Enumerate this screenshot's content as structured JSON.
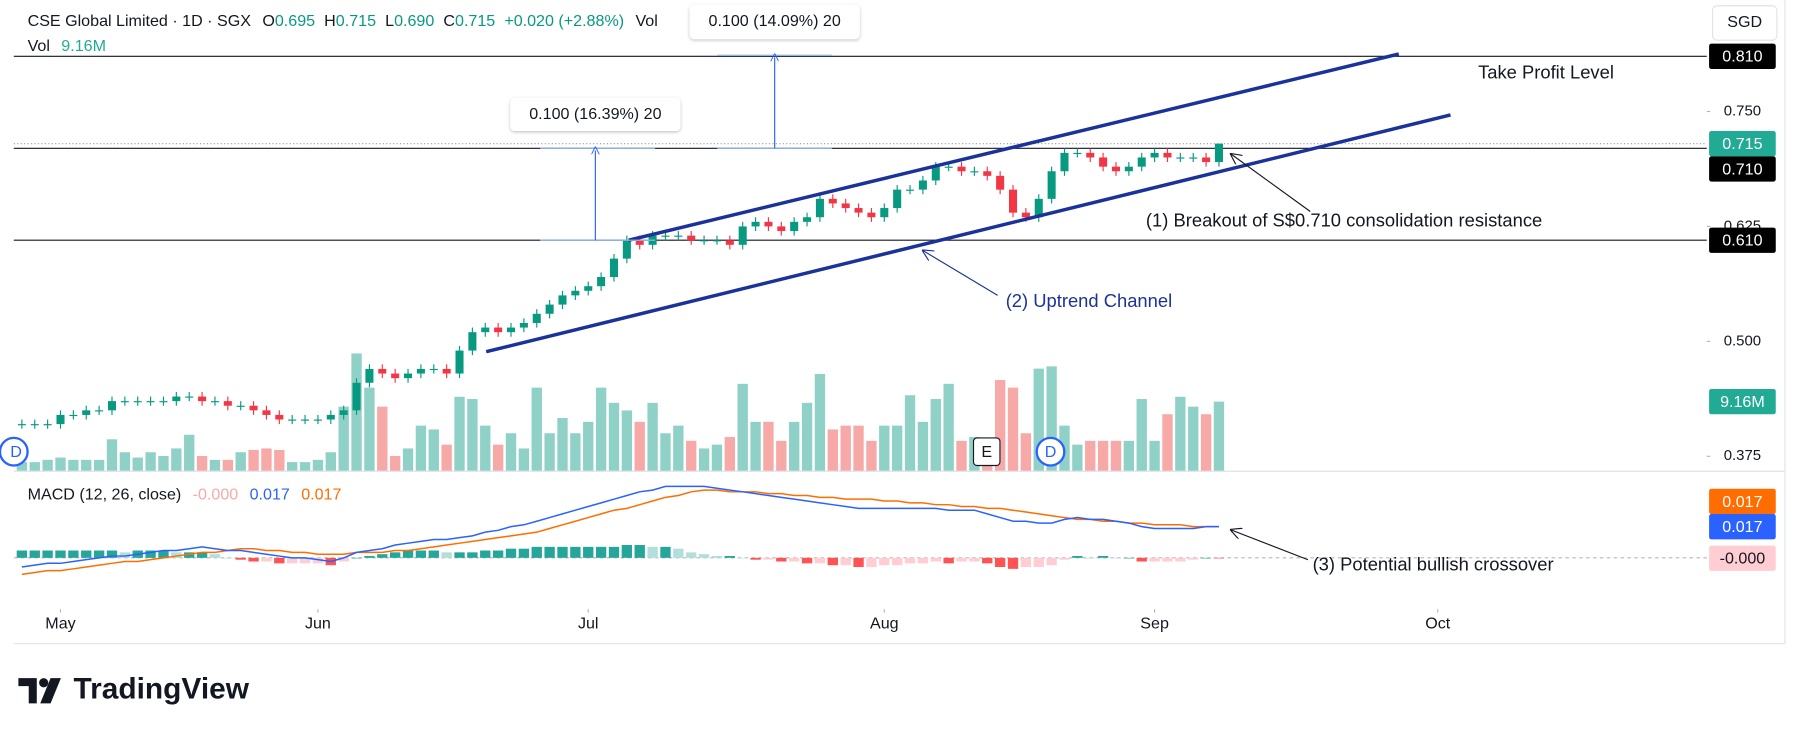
{
  "chart_data": {
    "type": "candlestick",
    "header": {
      "symbol": "CSE Global Limited · 1D · SGX",
      "ohlc": [
        {
          "key": "O",
          "value": "0.695"
        },
        {
          "key": "H",
          "value": "0.715"
        },
        {
          "key": "L",
          "value": "0.690"
        },
        {
          "key": "C",
          "value": "0.715"
        }
      ],
      "change": "+0.020 (+2.88%)"
    },
    "currency": "SGD",
    "colors": {
      "up": "#089981",
      "down": "#f23645",
      "volume_up": "#8fd1c7",
      "volume_down": "#f7a9a7"
    },
    "xlim": [
      -1.7,
      130.9
    ],
    "xticks": [
      {
        "value": 3,
        "label": "May"
      },
      {
        "value": 23,
        "label": "Jun"
      },
      {
        "value": 44,
        "label": "Jul"
      },
      {
        "value": 67,
        "label": "Aug"
      },
      {
        "value": 88,
        "label": "Sep"
      },
      {
        "value": 110,
        "label": "Oct"
      }
    ],
    "ylim": [
      0.35875,
      0.87125
    ],
    "yticks": [
      {
        "value": 0.375,
        "label": "0.375"
      },
      {
        "value": 0.5,
        "label": "0.500"
      },
      {
        "value": 0.625,
        "label": "0.625"
      },
      {
        "value": 0.75,
        "label": "0.750"
      }
    ],
    "candles": {
      "open": [
        0.41,
        0.41,
        0.41,
        0.41,
        0.42,
        0.42,
        0.425,
        0.425,
        0.435,
        0.435,
        0.435,
        0.435,
        0.435,
        0.44,
        0.44,
        0.435,
        0.435,
        0.43,
        0.43,
        0.425,
        0.42,
        0.415,
        0.415,
        0.415,
        0.415,
        0.42,
        0.425,
        0.455,
        0.47,
        0.465,
        0.46,
        0.465,
        0.47,
        0.47,
        0.465,
        0.49,
        0.51,
        0.515,
        0.51,
        0.515,
        0.52,
        0.53,
        0.54,
        0.55,
        0.555,
        0.56,
        0.57,
        0.59,
        0.61,
        0.605,
        0.615,
        0.615,
        0.615,
        0.61,
        0.61,
        0.61,
        0.605,
        0.625,
        0.63,
        0.625,
        0.62,
        0.63,
        0.635,
        0.655,
        0.65,
        0.645,
        0.64,
        0.635,
        0.645,
        0.665,
        0.665,
        0.675,
        0.69,
        0.69,
        0.685,
        0.685,
        0.68,
        0.665,
        0.64,
        0.635,
        0.655,
        0.685,
        0.705,
        0.705,
        0.7,
        0.69,
        0.685,
        0.69,
        0.7,
        0.705,
        0.7,
        0.7,
        0.7,
        0.695
      ],
      "high": [
        0.415,
        0.415,
        0.415,
        0.425,
        0.425,
        0.43,
        0.43,
        0.44,
        0.44,
        0.44,
        0.44,
        0.44,
        0.445,
        0.445,
        0.445,
        0.44,
        0.44,
        0.435,
        0.435,
        0.43,
        0.425,
        0.42,
        0.42,
        0.42,
        0.425,
        0.43,
        0.46,
        0.475,
        0.475,
        0.47,
        0.47,
        0.475,
        0.475,
        0.475,
        0.495,
        0.515,
        0.52,
        0.52,
        0.52,
        0.525,
        0.535,
        0.545,
        0.555,
        0.56,
        0.565,
        0.575,
        0.595,
        0.615,
        0.615,
        0.62,
        0.62,
        0.62,
        0.62,
        0.615,
        0.615,
        0.615,
        0.63,
        0.635,
        0.635,
        0.63,
        0.635,
        0.64,
        0.66,
        0.66,
        0.655,
        0.65,
        0.645,
        0.65,
        0.67,
        0.67,
        0.68,
        0.695,
        0.695,
        0.695,
        0.69,
        0.69,
        0.685,
        0.67,
        0.645,
        0.66,
        0.69,
        0.71,
        0.71,
        0.71,
        0.705,
        0.695,
        0.695,
        0.705,
        0.71,
        0.71,
        0.705,
        0.705,
        0.705,
        0.715
      ],
      "low": [
        0.405,
        0.405,
        0.405,
        0.405,
        0.415,
        0.415,
        0.42,
        0.42,
        0.43,
        0.43,
        0.43,
        0.43,
        0.43,
        0.435,
        0.43,
        0.43,
        0.425,
        0.425,
        0.42,
        0.415,
        0.41,
        0.41,
        0.41,
        0.41,
        0.41,
        0.415,
        0.42,
        0.45,
        0.46,
        0.455,
        0.455,
        0.46,
        0.465,
        0.46,
        0.46,
        0.485,
        0.505,
        0.505,
        0.505,
        0.51,
        0.515,
        0.525,
        0.535,
        0.545,
        0.55,
        0.555,
        0.565,
        0.585,
        0.6,
        0.6,
        0.61,
        0.61,
        0.605,
        0.605,
        0.605,
        0.6,
        0.6,
        0.62,
        0.62,
        0.615,
        0.615,
        0.625,
        0.63,
        0.645,
        0.64,
        0.635,
        0.63,
        0.63,
        0.64,
        0.66,
        0.66,
        0.67,
        0.685,
        0.68,
        0.68,
        0.675,
        0.66,
        0.635,
        0.63,
        0.63,
        0.65,
        0.68,
        0.7,
        0.695,
        0.685,
        0.68,
        0.68,
        0.685,
        0.695,
        0.695,
        0.695,
        0.695,
        0.69,
        0.69
      ],
      "close": [
        0.41,
        0.41,
        0.41,
        0.42,
        0.42,
        0.425,
        0.425,
        0.435,
        0.435,
        0.435,
        0.435,
        0.435,
        0.44,
        0.44,
        0.435,
        0.435,
        0.43,
        0.43,
        0.425,
        0.42,
        0.415,
        0.415,
        0.415,
        0.415,
        0.42,
        0.425,
        0.455,
        0.47,
        0.465,
        0.46,
        0.465,
        0.47,
        0.47,
        0.465,
        0.49,
        0.51,
        0.515,
        0.51,
        0.515,
        0.52,
        0.53,
        0.54,
        0.55,
        0.555,
        0.56,
        0.57,
        0.59,
        0.61,
        0.605,
        0.615,
        0.615,
        0.615,
        0.61,
        0.61,
        0.61,
        0.605,
        0.625,
        0.63,
        0.625,
        0.62,
        0.63,
        0.635,
        0.655,
        0.65,
        0.645,
        0.64,
        0.635,
        0.645,
        0.665,
        0.665,
        0.675,
        0.69,
        0.69,
        0.685,
        0.685,
        0.68,
        0.665,
        0.64,
        0.635,
        0.655,
        0.685,
        0.705,
        0.705,
        0.7,
        0.69,
        0.685,
        0.69,
        0.7,
        0.705,
        0.7,
        0.7,
        0.7,
        0.695,
        0.715
      ]
    },
    "levels": [
      {
        "value": 0.81,
        "label": "0.810"
      },
      {
        "value": 0.71,
        "label": "0.710"
      },
      {
        "value": 0.61,
        "label": "0.610"
      }
    ],
    "volume": {
      "name": "Vol",
      "ylim": [
        0,
        62
      ],
      "values": [
        1.2,
        1.2,
        1.5,
        1.8,
        1.5,
        1.5,
        1.5,
        4.2,
        2.5,
        1.8,
        2.5,
        2.0,
        3.0,
        4.8,
        2.0,
        1.5,
        1.5,
        2.5,
        2.8,
        3.0,
        2.8,
        1.2,
        1.2,
        1.5,
        2.5,
        8.5,
        15.5,
        11.0,
        8.5,
        2.0,
        3.0,
        6.0,
        5.5,
        3.5,
        9.8,
        9.5,
        6.0,
        3.5,
        5.0,
        3.0,
        11.0,
        5.0,
        7.0,
        5.0,
        6.5,
        11.0,
        9.0,
        8.0,
        6.5,
        9.0,
        5.0,
        6.0,
        4.0,
        3.0,
        3.5,
        4.5,
        11.5,
        6.5,
        6.5,
        4.0,
        6.5,
        9.0,
        12.8,
        5.5,
        6.0,
        6.0,
        4.0,
        6.0,
        6.0,
        10.0,
        6.5,
        9.5,
        11.5,
        4.0,
        4.5,
        2.5,
        12.0,
        11.0,
        5.0,
        13.5,
        13.8,
        6.0,
        3.5,
        4.0,
        4.0,
        4.0,
        4.0,
        9.5,
        4.0,
        7.5,
        9.8,
        8.5,
        7.5,
        9.16
      ],
      "last_label": "9.16M"
    },
    "macd": {
      "name": "MACD (12, 26, close)",
      "ylim": [
        -0.028,
        0.046
      ],
      "line": {
        "color": "#2962ff",
        "values": [
          -0.005,
          -0.004,
          -0.003,
          -0.003,
          -0.002,
          -0.001,
          0,
          0.001,
          0.001,
          0.002,
          0.003,
          0.004,
          0.004,
          0.005,
          0.006,
          0.005,
          0.004,
          0.004,
          0.003,
          0.002,
          0.001,
          0,
          0,
          -0.001,
          -0.002,
          0,
          0.003,
          0.004,
          0.005,
          0.007,
          0.008,
          0.009,
          0.01,
          0.01,
          0.011,
          0.012,
          0.014,
          0.015,
          0.017,
          0.018,
          0.02,
          0.022,
          0.024,
          0.026,
          0.028,
          0.03,
          0.032,
          0.034,
          0.036,
          0.037,
          0.039,
          0.039,
          0.039,
          0.039,
          0.038,
          0.037,
          0.036,
          0.035,
          0.034,
          0.033,
          0.032,
          0.031,
          0.03,
          0.029,
          0.028,
          0.027,
          0.027,
          0.027,
          0.027,
          0.027,
          0.027,
          0.027,
          0.026,
          0.026,
          0.026,
          0.024,
          0.022,
          0.02,
          0.02,
          0.019,
          0.019,
          0.021,
          0.022,
          0.021,
          0.021,
          0.02,
          0.019,
          0.017,
          0.016,
          0.016,
          0.016,
          0.016,
          0.017,
          0.017
        ]
      },
      "signal": {
        "color": "#ff6d00",
        "values": [
          -0.009,
          -0.008,
          -0.007,
          -0.007,
          -0.006,
          -0.005,
          -0.004,
          -0.003,
          -0.002,
          -0.002,
          -0.001,
          0,
          0.001,
          0.002,
          0.003,
          0.003,
          0.004,
          0.005,
          0.005,
          0.004,
          0.004,
          0.003,
          0.003,
          0.002,
          0.002,
          0.002,
          0.003,
          0.003,
          0.003,
          0.004,
          0.004,
          0.005,
          0.006,
          0.007,
          0.008,
          0.009,
          0.01,
          0.011,
          0.012,
          0.013,
          0.014,
          0.016,
          0.018,
          0.02,
          0.022,
          0.024,
          0.026,
          0.027,
          0.029,
          0.031,
          0.033,
          0.034,
          0.036,
          0.037,
          0.037,
          0.036,
          0.036,
          0.036,
          0.035,
          0.035,
          0.034,
          0.034,
          0.033,
          0.033,
          0.032,
          0.032,
          0.032,
          0.031,
          0.031,
          0.03,
          0.03,
          0.029,
          0.029,
          0.028,
          0.028,
          0.027,
          0.027,
          0.026,
          0.025,
          0.024,
          0.023,
          0.022,
          0.021,
          0.021,
          0.02,
          0.02,
          0.019,
          0.019,
          0.018,
          0.018,
          0.018,
          0.017,
          0.017,
          0.017
        ]
      },
      "histogram": {
        "values": [
          0.004,
          0.004,
          0.004,
          0.004,
          0.004,
          0.004,
          0.004,
          0.004,
          0.003,
          0.004,
          0.004,
          0.004,
          0.003,
          0.003,
          0.003,
          0.002,
          0,
          -0.001,
          -0.002,
          -0.002,
          -0.003,
          -0.003,
          -0.003,
          -0.003,
          -0.004,
          -0.002,
          0,
          0.001,
          0.002,
          0.003,
          0.004,
          0.004,
          0.004,
          0.003,
          0.003,
          0.003,
          0.004,
          0.004,
          0.005,
          0.005,
          0.006,
          0.006,
          0.006,
          0.006,
          0.006,
          0.006,
          0.006,
          0.007,
          0.007,
          0.006,
          0.006,
          0.005,
          0.003,
          0.002,
          0.001,
          0.001,
          0,
          -0.001,
          -0.001,
          -0.002,
          -0.002,
          -0.003,
          -0.003,
          -0.004,
          -0.004,
          -0.005,
          -0.005,
          -0.004,
          -0.004,
          -0.003,
          -0.003,
          -0.002,
          -0.003,
          -0.002,
          -0.002,
          -0.003,
          -0.005,
          -0.006,
          -0.005,
          -0.005,
          -0.004,
          -0.001,
          0.001,
          0,
          0.001,
          0,
          0,
          -0.002,
          -0.002,
          -0.002,
          -0.002,
          -0.001,
          0,
          -0.0002
        ],
        "last_label": "-0.000"
      }
    },
    "measures": [
      "0.100 (16.39%) 20",
      "0.100 (14.09%) 20"
    ],
    "annotations": [
      "Take Profit Level",
      "(1) Breakout of S$0.710 consolidation resistance",
      "(2) Uptrend Channel",
      "(3) Potential bullish crossover"
    ],
    "events": [
      "E",
      "D",
      "D"
    ],
    "brand": "TradingView"
  }
}
